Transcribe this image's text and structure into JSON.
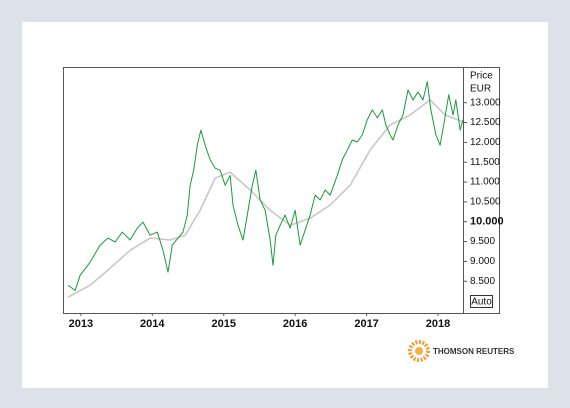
{
  "chart_data": {
    "type": "line",
    "y_axis_label": "Price",
    "unit": "EUR",
    "scale_button": "Auto",
    "brand": "THOMSON REUTERS",
    "xlim": [
      2012.75,
      2018.35
    ],
    "xticks": [
      2013,
      2014,
      2015,
      2016,
      2017,
      2018
    ],
    "ylim": [
      7.7,
      13.9
    ],
    "yticks": [
      {
        "value": 8.5,
        "label": "8.500"
      },
      {
        "value": 9,
        "label": "9.000"
      },
      {
        "value": 9.5,
        "label": "9.500"
      },
      {
        "value": 10,
        "label": "10.000",
        "bold": true
      },
      {
        "value": 10.5,
        "label": "10.500"
      },
      {
        "value": 11,
        "label": "11.000"
      },
      {
        "value": 11.5,
        "label": "11.500"
      },
      {
        "value": 12,
        "label": "12.000"
      },
      {
        "value": 12.5,
        "label": "12.500"
      },
      {
        "value": 13,
        "label": "13.000"
      }
    ],
    "series": [
      {
        "color": "#c8c8c8",
        "x": [
          2012.82,
          2013.13,
          2013.41,
          2013.69,
          2013.97,
          2014.25,
          2014.46,
          2014.67,
          2014.88,
          2015.09,
          2015.37,
          2015.65,
          2015.93,
          2016.21,
          2016.49,
          2016.77,
          2017.05,
          2017.33,
          2017.61,
          2017.89,
          2018.1,
          2018.35
        ],
        "values": [
          8.1,
          8.4,
          8.83,
          9.28,
          9.59,
          9.54,
          9.66,
          10.29,
          11.1,
          11.25,
          10.8,
          10.29,
          9.91,
          10.09,
          10.42,
          10.92,
          11.81,
          12.44,
          12.69,
          13.07,
          12.69,
          12.52
        ]
      },
      {
        "color": "#1a9a3a",
        "x": [
          2012.82,
          2012.92,
          2012.99,
          2013.13,
          2013.27,
          2013.38,
          2013.48,
          2013.58,
          2013.69,
          2013.79,
          2013.87,
          2013.97,
          2014.07,
          2014.15,
          2014.22,
          2014.28,
          2014.36,
          2014.43,
          2014.49,
          2014.53,
          2014.58,
          2014.63,
          2014.68,
          2014.74,
          2014.81,
          2014.88,
          2014.95,
          2015.02,
          2015.09,
          2015.13,
          2015.2,
          2015.27,
          2015.33,
          2015.4,
          2015.45,
          2015.51,
          2015.58,
          2015.65,
          2015.69,
          2015.73,
          2015.79,
          2015.86,
          2015.93,
          2016.0,
          2016.07,
          2016.14,
          2016.21,
          2016.28,
          2016.35,
          2016.42,
          2016.49,
          2016.59,
          2016.66,
          2016.73,
          2016.8,
          2016.87,
          2016.94,
          2017.01,
          2017.08,
          2017.15,
          2017.22,
          2017.27,
          2017.33,
          2017.37,
          2017.44,
          2017.51,
          2017.58,
          2017.65,
          2017.72,
          2017.79,
          2017.85,
          2017.9,
          2017.97,
          2018.03,
          2018.08,
          2018.15,
          2018.21,
          2018.25,
          2018.31,
          2018.35
        ],
        "values": [
          8.4,
          8.27,
          8.65,
          8.98,
          9.41,
          9.59,
          9.49,
          9.74,
          9.54,
          9.84,
          9.99,
          9.66,
          9.74,
          9.28,
          8.73,
          9.41,
          9.59,
          9.74,
          10.17,
          10.92,
          11.3,
          11.93,
          12.31,
          11.93,
          11.56,
          11.35,
          11.3,
          10.92,
          11.17,
          10.42,
          9.91,
          9.54,
          10.17,
          10.92,
          11.3,
          10.55,
          10.29,
          9.54,
          8.9,
          9.66,
          9.91,
          10.17,
          9.84,
          10.29,
          9.41,
          9.79,
          10.17,
          10.67,
          10.55,
          10.8,
          10.67,
          11.17,
          11.56,
          11.81,
          12.06,
          12.01,
          12.19,
          12.57,
          12.82,
          12.62,
          12.82,
          12.44,
          12.19,
          12.06,
          12.44,
          12.69,
          13.32,
          13.07,
          13.27,
          13.07,
          13.53,
          12.82,
          12.19,
          11.93,
          12.44,
          13.2,
          12.69,
          13.07,
          12.31,
          12.57
        ]
      }
    ]
  }
}
